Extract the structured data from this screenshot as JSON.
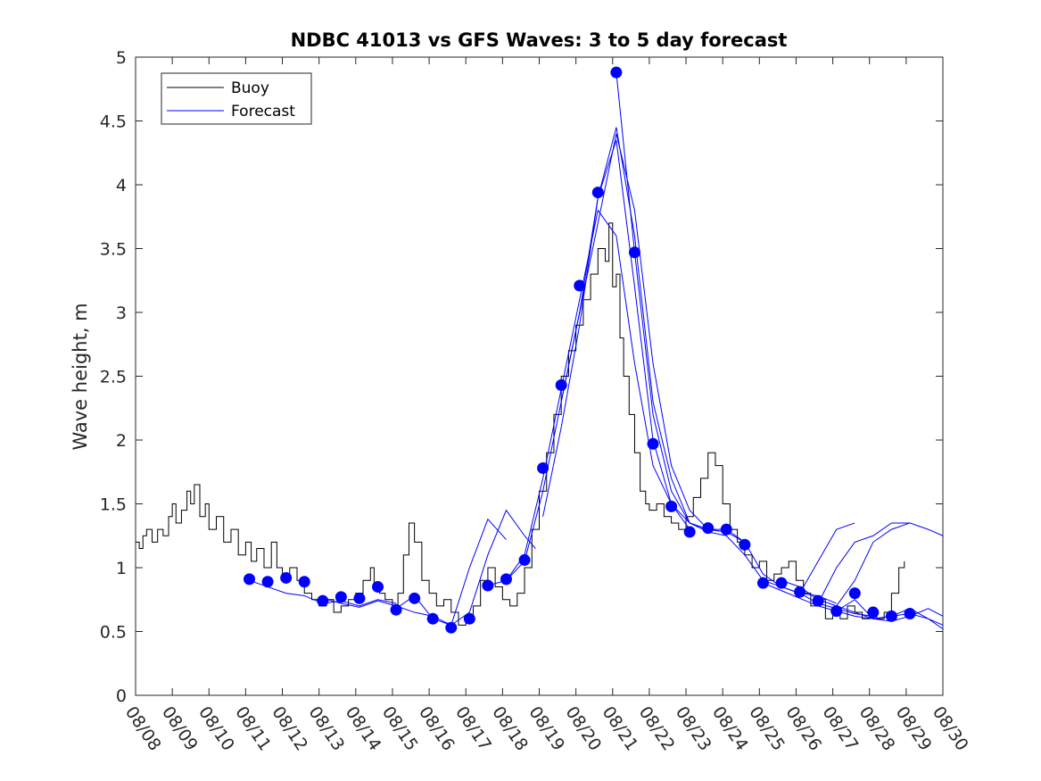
{
  "chart_data": {
    "type": "line",
    "title": "NDBC 41013 vs GFS Waves: 3 to 5 day forecast",
    "xlabel": "",
    "ylabel": "Wave height, m",
    "xlim": [
      0,
      22
    ],
    "ylim": [
      0,
      5
    ],
    "x_tick_labels": [
      "08/08",
      "08/09",
      "08/10",
      "08/11",
      "08/12",
      "08/13",
      "08/14",
      "08/15",
      "08/16",
      "08/17",
      "08/18",
      "08/19",
      "08/20",
      "08/21",
      "08/22",
      "08/23",
      "08/24",
      "08/25",
      "08/26",
      "08/27",
      "08/28",
      "08/29",
      "08/30"
    ],
    "y_ticks": [
      0,
      0.5,
      1,
      1.5,
      2,
      2.5,
      3,
      3.5,
      4,
      4.5,
      5
    ],
    "y_tick_labels": [
      "0",
      "0.5",
      "1",
      "1.5",
      "2",
      "2.5",
      "3",
      "3.5",
      "4",
      "4.5",
      "5"
    ],
    "legend": {
      "position": "top-left",
      "entries": [
        "Buoy",
        "Forecast"
      ]
    },
    "colors": {
      "buoy": "#000000",
      "forecast": "#0000ff",
      "markers": "#0000ff"
    },
    "buoy": {
      "name": "Buoy",
      "x": [
        0,
        0.1,
        0.2,
        0.3,
        0.45,
        0.6,
        0.75,
        0.9,
        1.0,
        1.1,
        1.25,
        1.4,
        1.5,
        1.6,
        1.75,
        1.9,
        2.0,
        2.2,
        2.4,
        2.6,
        2.8,
        3.0,
        3.15,
        3.3,
        3.5,
        3.7,
        3.85,
        4.0,
        4.2,
        4.4,
        4.6,
        4.8,
        5.0,
        5.2,
        5.4,
        5.6,
        5.8,
        6.0,
        6.2,
        6.4,
        6.5,
        6.65,
        6.8,
        7.0,
        7.15,
        7.3,
        7.45,
        7.6,
        7.8,
        8.0,
        8.2,
        8.4,
        8.6,
        8.8,
        9.0,
        9.2,
        9.4,
        9.6,
        9.8,
        10.0,
        10.2,
        10.4,
        10.6,
        10.8,
        11.0,
        11.2,
        11.4,
        11.6,
        11.8,
        12.0,
        12.2,
        12.4,
        12.6,
        12.8,
        12.9,
        13.0,
        13.1,
        13.2,
        13.3,
        13.45,
        13.6,
        13.75,
        13.9,
        14.0,
        14.2,
        14.4,
        14.6,
        14.8,
        15.0,
        15.2,
        15.4,
        15.6,
        15.8,
        16.0,
        16.2,
        16.4,
        16.6,
        16.8,
        17.0,
        17.2,
        17.4,
        17.6,
        17.8,
        18.0,
        18.2,
        18.4,
        18.6,
        18.8,
        19.0,
        19.2,
        19.4,
        19.6,
        19.8,
        20.0,
        20.2,
        20.4,
        20.6,
        20.8,
        20.95
      ],
      "values": [
        1.2,
        1.15,
        1.25,
        1.3,
        1.2,
        1.3,
        1.25,
        1.4,
        1.5,
        1.35,
        1.45,
        1.6,
        1.5,
        1.65,
        1.4,
        1.5,
        1.3,
        1.4,
        1.2,
        1.3,
        1.1,
        1.2,
        1.05,
        1.15,
        1.0,
        1.2,
        1.0,
        0.9,
        1.0,
        0.9,
        0.8,
        0.75,
        0.7,
        0.75,
        0.65,
        0.7,
        0.75,
        0.8,
        0.9,
        1.0,
        0.85,
        0.8,
        0.75,
        0.7,
        0.8,
        1.1,
        1.35,
        1.2,
        0.9,
        0.8,
        0.7,
        0.75,
        0.65,
        0.55,
        0.6,
        0.7,
        0.9,
        1.0,
        0.85,
        0.75,
        0.7,
        0.8,
        1.0,
        1.3,
        1.6,
        1.9,
        2.2,
        2.5,
        2.7,
        2.9,
        3.1,
        3.3,
        3.5,
        3.4,
        3.7,
        3.2,
        3.3,
        2.8,
        2.5,
        2.2,
        1.9,
        1.6,
        1.5,
        1.45,
        1.5,
        1.4,
        1.35,
        1.3,
        1.4,
        1.55,
        1.7,
        1.9,
        1.8,
        1.5,
        1.3,
        1.2,
        1.1,
        1.0,
        1.05,
        0.9,
        0.95,
        1.0,
        1.05,
        0.9,
        0.8,
        0.7,
        0.75,
        0.6,
        0.65,
        0.6,
        0.7,
        0.65,
        0.6,
        0.65,
        0.6,
        0.65,
        0.8,
        1.0,
        1.05
      ]
    },
    "forecast_points": {
      "name": "Forecast",
      "x": [
        3.1,
        3.6,
        4.1,
        4.6,
        5.1,
        5.6,
        6.1,
        6.6,
        7.1,
        7.6,
        8.1,
        8.6,
        9.1,
        9.6,
        10.1,
        10.6,
        11.1,
        11.6,
        12.1,
        12.6,
        13.1,
        13.6,
        14.1,
        14.6,
        15.1,
        15.6,
        16.1,
        16.6,
        17.1,
        17.6,
        18.1,
        18.6,
        19.1,
        19.6,
        20.1,
        20.6,
        21.1
      ],
      "values": [
        0.91,
        0.89,
        0.92,
        0.89,
        0.74,
        0.77,
        0.76,
        0.85,
        0.67,
        0.76,
        0.6,
        0.53,
        0.6,
        0.86,
        0.91,
        1.06,
        1.78,
        2.43,
        3.21,
        3.94,
        4.88,
        3.47,
        1.97,
        1.48,
        1.28,
        1.31,
        1.3,
        1.18,
        0.88,
        0.88,
        0.81,
        0.74,
        0.66,
        0.8,
        0.65,
        0.62,
        0.64
      ]
    },
    "forecast_lines": [
      {
        "x": [
          3.1,
          3.6,
          4.1,
          4.6,
          5.1,
          5.6,
          6.1,
          6.6,
          7.1
        ],
        "values": [
          0.9,
          0.85,
          0.8,
          0.78,
          0.72,
          0.74,
          0.7,
          0.75,
          0.72
        ]
      },
      {
        "x": [
          5.1,
          5.6,
          6.1,
          6.6,
          7.1,
          7.6,
          8.1
        ],
        "values": [
          0.76,
          0.72,
          0.69,
          0.74,
          0.7,
          0.65,
          0.62
        ]
      },
      {
        "x": [
          7.1,
          7.6,
          8.1,
          8.6,
          9.1,
          9.6,
          10.1
        ],
        "values": [
          0.68,
          0.78,
          0.6,
          0.55,
          1.0,
          1.38,
          1.22
        ]
      },
      {
        "x": [
          8.1,
          8.6,
          9.1,
          9.6,
          10.1,
          10.6,
          10.9
        ],
        "values": [
          0.62,
          0.55,
          0.65,
          1.1,
          1.45,
          1.25,
          1.15
        ]
      },
      {
        "x": [
          9.6,
          10.1,
          10.6,
          11.1,
          11.6,
          12.1,
          12.6,
          13.1,
          13.6,
          14.1,
          14.6,
          15.1
        ],
        "values": [
          0.86,
          0.9,
          1.1,
          1.7,
          2.4,
          3.1,
          3.8,
          3.6,
          2.6,
          1.8,
          1.5,
          1.3
        ]
      },
      {
        "x": [
          10.1,
          10.6,
          11.1,
          11.6,
          12.1,
          12.6,
          13.1,
          13.6,
          14.1,
          14.6,
          15.1,
          15.6
        ],
        "values": [
          0.9,
          1.05,
          1.6,
          2.3,
          3.0,
          3.9,
          4.35,
          3.2,
          2.0,
          1.5,
          1.35,
          1.3
        ]
      },
      {
        "x": [
          11.1,
          11.6,
          12.1,
          12.6,
          13.1,
          13.6,
          14.1,
          14.6,
          15.1,
          15.6,
          16.1
        ],
        "values": [
          1.4,
          2.1,
          2.9,
          3.9,
          4.45,
          3.6,
          2.3,
          1.7,
          1.35,
          1.3,
          1.28
        ]
      },
      {
        "x": [
          11.6,
          12.1,
          12.6,
          13.1,
          13.6,
          14.1,
          14.6,
          15.1,
          15.6,
          16.1,
          16.6
        ],
        "values": [
          2.3,
          3.0,
          3.7,
          4.4,
          3.8,
          2.6,
          1.8,
          1.45,
          1.3,
          1.3,
          1.2
        ]
      },
      {
        "x": [
          13.1,
          13.6,
          14.1,
          14.6,
          15.1,
          15.6,
          16.1,
          16.6,
          17.1,
          17.6,
          18.1,
          18.6,
          19.1
        ],
        "values": [
          4.88,
          3.47,
          2.2,
          1.6,
          1.35,
          1.3,
          1.28,
          1.2,
          0.95,
          0.85,
          0.8,
          0.78,
          0.72
        ]
      },
      {
        "x": [
          15.1,
          15.6,
          16.1,
          16.6,
          17.1,
          17.6,
          18.1,
          18.6,
          19.1,
          19.6,
          20.1
        ],
        "values": [
          1.35,
          1.28,
          1.25,
          1.1,
          0.9,
          0.85,
          0.8,
          0.72,
          0.68,
          0.64,
          0.62
        ]
      },
      {
        "x": [
          17.1,
          17.6,
          18.1,
          18.6,
          19.1,
          19.6,
          20.1,
          20.6,
          21.1,
          21.6,
          22.0
        ],
        "values": [
          0.88,
          0.82,
          0.76,
          0.7,
          0.66,
          0.62,
          0.6,
          0.62,
          0.64,
          0.6,
          0.55
        ]
      },
      {
        "x": [
          17.6,
          18.1,
          18.6,
          19.1,
          19.6,
          20.1,
          20.6,
          21.1,
          21.6,
          22.0
        ],
        "values": [
          0.9,
          0.85,
          0.75,
          0.7,
          0.65,
          0.6,
          0.58,
          0.62,
          0.68,
          0.62
        ]
      },
      {
        "x": [
          19.1,
          19.6,
          20.1,
          20.6,
          21.1,
          21.6,
          22.0
        ],
        "values": [
          0.66,
          0.75,
          0.6,
          0.62,
          0.68,
          0.6,
          0.52
        ]
      },
      {
        "x": [
          19.1,
          19.6,
          20.1,
          20.6,
          21.1,
          21.6,
          22.0
        ],
        "values": [
          0.7,
          0.9,
          1.2,
          1.3,
          1.35,
          1.3,
          1.25
        ]
      },
      {
        "x": [
          18.6,
          19.1,
          19.6,
          20.1,
          20.6,
          21.1
        ],
        "values": [
          0.72,
          1.0,
          1.2,
          1.25,
          1.35,
          1.35
        ]
      },
      {
        "x": [
          18.1,
          18.6,
          19.1,
          19.6
        ],
        "values": [
          0.8,
          1.05,
          1.3,
          1.35
        ]
      }
    ]
  }
}
